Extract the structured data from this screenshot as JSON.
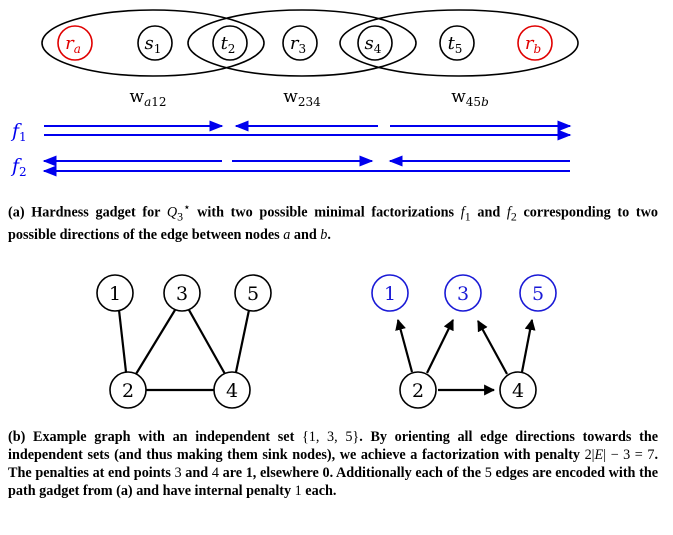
{
  "gadget": {
    "nodes": [
      {
        "base": "r",
        "sub": "a",
        "color": "#e00000"
      },
      {
        "base": "s",
        "sub": "1",
        "color": "#000000"
      },
      {
        "base": "t",
        "sub": "2",
        "color": "#000000"
      },
      {
        "base": "r",
        "sub": "3",
        "color": "#000000"
      },
      {
        "base": "s",
        "sub": "4",
        "color": "#000000"
      },
      {
        "base": "t",
        "sub": "5",
        "color": "#000000"
      },
      {
        "base": "r",
        "sub": "b",
        "color": "#e00000"
      }
    ],
    "sets": [
      {
        "base": "w",
        "sub": [
          "a",
          "12"
        ]
      },
      {
        "base": "w",
        "sub": [
          "",
          "234"
        ]
      },
      {
        "base": "w",
        "sub": [
          "45",
          "b"
        ]
      }
    ],
    "factorizations": [
      {
        "base": "f",
        "sub": "1",
        "color": "#0000ee"
      },
      {
        "base": "f",
        "sub": "2",
        "color": "#0000ee"
      }
    ]
  },
  "caption_a": [
    "(a) Hardness gadget for ",
    "Q",
    "3",
    "⋆",
    " with two possible minimal factorizations ",
    "f",
    "1",
    " and ",
    "f",
    "2",
    " corresponding to two possible directions of the edge between nodes ",
    "a",
    " and ",
    "b",
    "."
  ],
  "graph_left": {
    "nodes": [
      "1",
      "3",
      "5",
      "2",
      "4"
    ],
    "color": "#000000"
  },
  "graph_right": {
    "nodes": [
      "1",
      "3",
      "5",
      "2",
      "4"
    ],
    "sink_color": "#1a1ad6"
  },
  "caption_b": [
    "(b) Example graph with an independent set ",
    "{1, 3, 5}",
    ". By orienting all edge directions towards the independent sets (and thus making them sink nodes), we achieve a factorization with penalty ",
    "2|",
    "E",
    "| − 3 = 7",
    ". The penalties at end points ",
    "3",
    " and ",
    "4",
    " are 1, elsewhere 0. Additionally each of the ",
    "5",
    " edges are encoded with the path gadget from (a) and have internal penalty ",
    "1",
    " each."
  ]
}
